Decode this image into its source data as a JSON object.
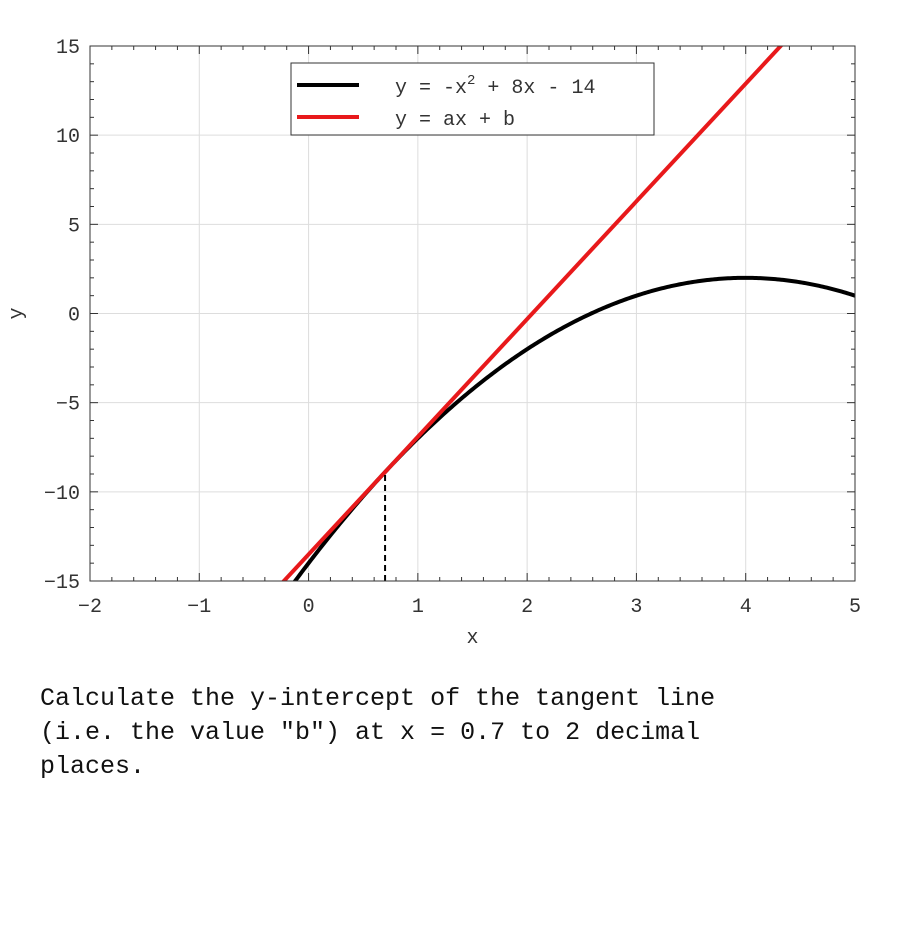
{
  "chart_data": {
    "type": "line",
    "xlabel": "x",
    "ylabel": "y",
    "xlim": [
      -2,
      5
    ],
    "ylim": [
      -15,
      15
    ],
    "xticks": [
      -2,
      -1,
      0,
      1,
      2,
      3,
      4,
      5
    ],
    "yticks": [
      -15,
      -10,
      -5,
      0,
      5,
      10,
      15
    ],
    "grid": true,
    "legend_position": "top-center",
    "series": [
      {
        "name": "y = -x^2 + 8x - 14",
        "legend_parts": {
          "prefix": "y = -x",
          "sup": "2",
          "suffix": " + 8x - 14"
        },
        "color": "#000000",
        "function": "quadratic",
        "coefficients": [
          -1,
          8,
          -14
        ],
        "domain": [
          -0.2,
          5
        ]
      },
      {
        "name": "y = ax + b",
        "legend_parts": {
          "prefix": "y = ax + b",
          "sup": "",
          "suffix": ""
        },
        "color": "#e8191b",
        "function": "tangent",
        "tangent_at": 0.7,
        "domain": [
          -2,
          5
        ]
      }
    ],
    "annotations": [
      {
        "type": "vertical-dashed-line",
        "x": 0.7,
        "from_y": -15,
        "to_curve": true,
        "color": "#000000"
      }
    ]
  },
  "question": {
    "text": "Calculate the y-intercept of the tangent line\n(i.e. the value \"b\") at x = 0.7 to 2 decimal\nplaces."
  }
}
